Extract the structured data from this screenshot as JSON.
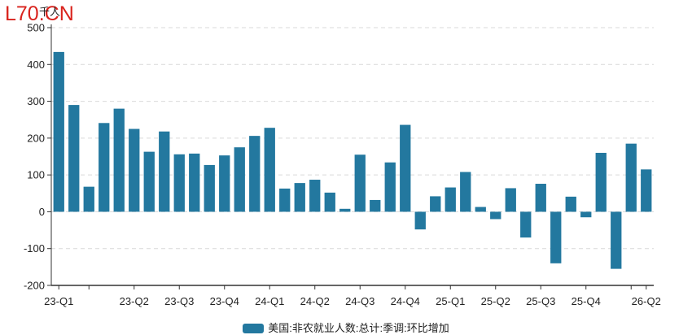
{
  "logo": "L70.CN",
  "chart_data": {
    "type": "bar",
    "unit": "千人",
    "ylim": [
      -200,
      500
    ],
    "yticks": [
      -200,
      -100,
      0,
      100,
      200,
      300,
      400,
      500
    ],
    "grid": true,
    "legend_position": "bottom",
    "color": "#23789f",
    "series": [
      {
        "name": "美国:非农就业人数:总计:季调:环比增加",
        "values": [
          434,
          290,
          68,
          241,
          280,
          225,
          163,
          218,
          156,
          158,
          127,
          153,
          175,
          206,
          228,
          63,
          78,
          87,
          52,
          8,
          155,
          32,
          134,
          236,
          -48,
          42,
          66,
          108,
          13,
          -20,
          64,
          -70,
          76,
          -140,
          41,
          -15,
          160,
          -155,
          185,
          115
        ]
      }
    ],
    "tick_labels": [
      {
        "label": "23-Q1",
        "bar": 0
      },
      {
        "label": "23-Q2",
        "bar": 5
      },
      {
        "label": "23-Q3",
        "bar": 8
      },
      {
        "label": "23-Q4",
        "bar": 11
      },
      {
        "label": "24-Q1",
        "bar": 14
      },
      {
        "label": "24-Q2",
        "bar": 17
      },
      {
        "label": "24-Q3",
        "bar": 20
      },
      {
        "label": "24-Q4",
        "bar": 23
      },
      {
        "label": "25-Q1",
        "bar": 26
      },
      {
        "label": "25-Q2",
        "bar": 29
      },
      {
        "label": "25-Q3",
        "bar": 32
      },
      {
        "label": "25-Q4",
        "bar": 35
      },
      {
        "label": "26-Q2",
        "bar": 39
      }
    ],
    "tick_marks": [
      0,
      2,
      5,
      8,
      11,
      14,
      17,
      20,
      23,
      26,
      29,
      32,
      35,
      38,
      39
    ]
  }
}
